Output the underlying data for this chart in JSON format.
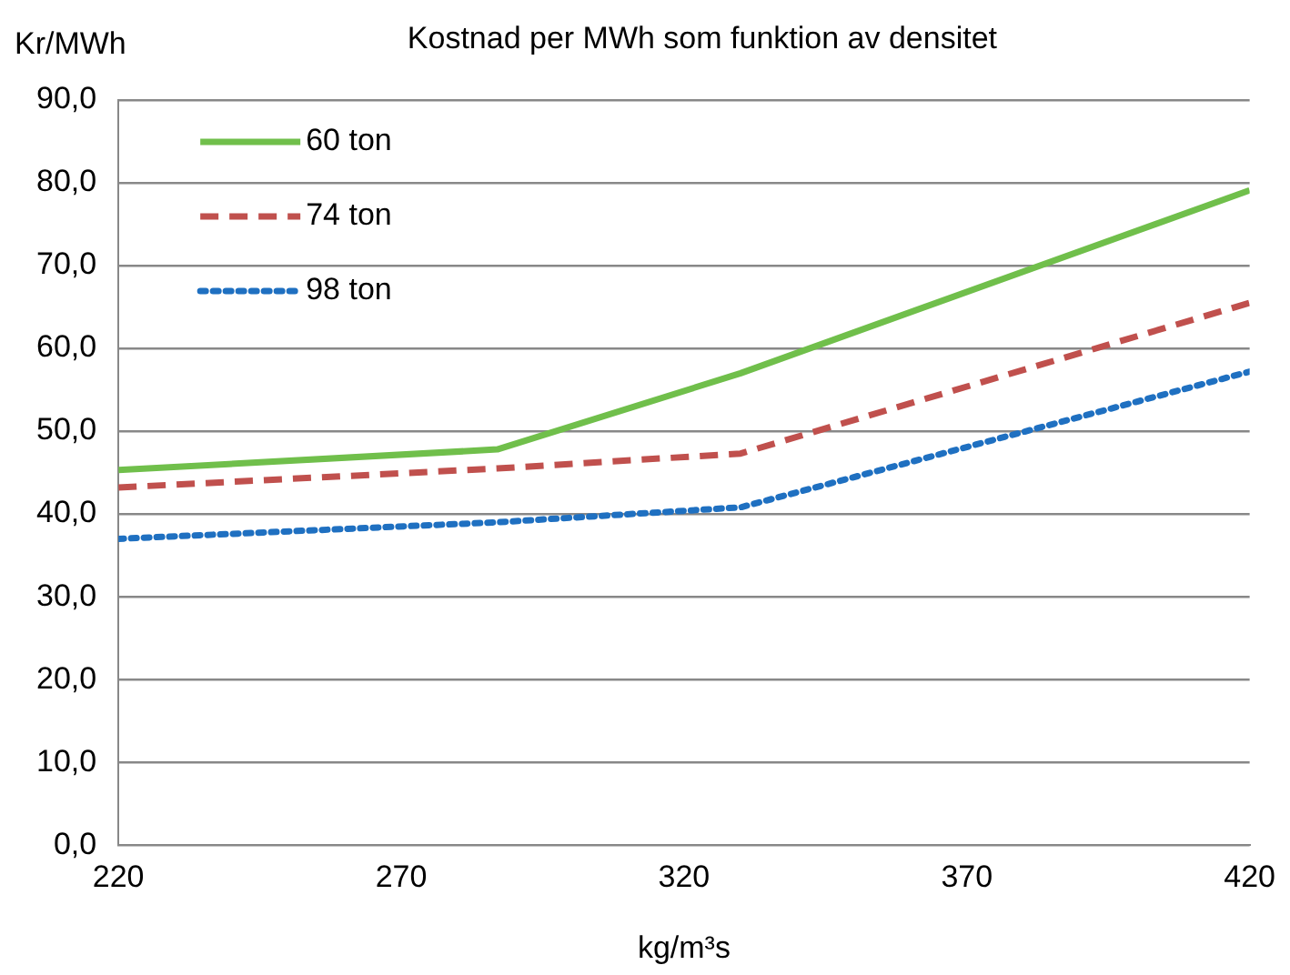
{
  "chart_data": {
    "type": "line",
    "title": "Kostnad per MWh som funktion av densitet",
    "ylabel": "Kr/MWh",
    "xlabel": "kg/m³s",
    "x": [
      220,
      287,
      330,
      420
    ],
    "series": [
      {
        "name": "60 ton",
        "color": "#70bf4b",
        "line_style": "solid",
        "values": [
          45.3,
          47.8,
          57.0,
          79.1
        ]
      },
      {
        "name": "74 ton",
        "color": "#c0504d",
        "line_style": "dashed",
        "values": [
          43.2,
          45.5,
          47.3,
          65.5
        ]
      },
      {
        "name": "98 ton",
        "color": "#1f70c1",
        "line_style": "dotted",
        "values": [
          37.0,
          39.0,
          40.8,
          57.2
        ]
      }
    ],
    "xlim": [
      220,
      420
    ],
    "xticks": [
      220,
      270,
      320,
      370,
      420
    ],
    "ylim": [
      0,
      90
    ],
    "yticks": [
      {
        "value": 0,
        "label": "0,0"
      },
      {
        "value": 10,
        "label": "10,0"
      },
      {
        "value": 20,
        "label": "20,0"
      },
      {
        "value": 30,
        "label": "30,0"
      },
      {
        "value": 40,
        "label": "40,0"
      },
      {
        "value": 50,
        "label": "50,0"
      },
      {
        "value": 60,
        "label": "60,0"
      },
      {
        "value": 70,
        "label": "70,0"
      },
      {
        "value": 80,
        "label": "80,0"
      },
      {
        "value": 90,
        "label": "90,0"
      }
    ],
    "grid": "y",
    "legend": "top left",
    "marker": "none"
  }
}
